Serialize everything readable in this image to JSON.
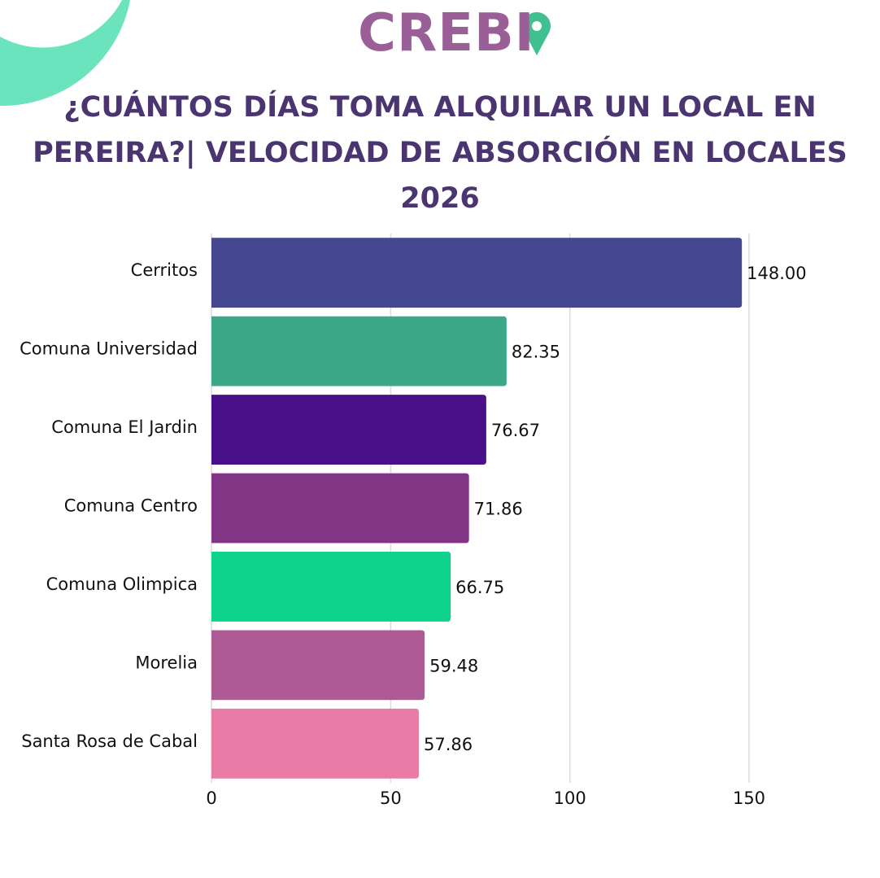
{
  "logo": "CREBI",
  "chart_data": {
    "type": "bar",
    "orientation": "horizontal",
    "title": "¿CUÁNTOS DÍAS TOMA ALQUILAR UN LOCAL EN PEREIRA?| VELOCIDAD DE ABSORCIÓN EN LOCALES 2026",
    "categories": [
      "Cerritos",
      "Comuna Universidad",
      "Comuna El Jardin",
      "Comuna Centro",
      "Comuna Olimpica",
      "Morelia",
      "Santa Rosa de Cabal"
    ],
    "values": [
      148,
      82.35,
      76.67,
      71.86,
      66.75,
      59.48,
      57.86
    ],
    "value_labels": [
      "148.00",
      "82.35",
      "76.67",
      "71.86",
      "66.75",
      "59.48",
      "57.86"
    ],
    "colors": [
      "#454790",
      "#3ca887",
      "#4a108a",
      "#833585",
      "#0dd38d",
      "#ad5a95",
      "#e87ca6"
    ],
    "xlim": [
      0,
      150
    ],
    "xticks": [
      0,
      50,
      100,
      150
    ],
    "grid": true
  }
}
